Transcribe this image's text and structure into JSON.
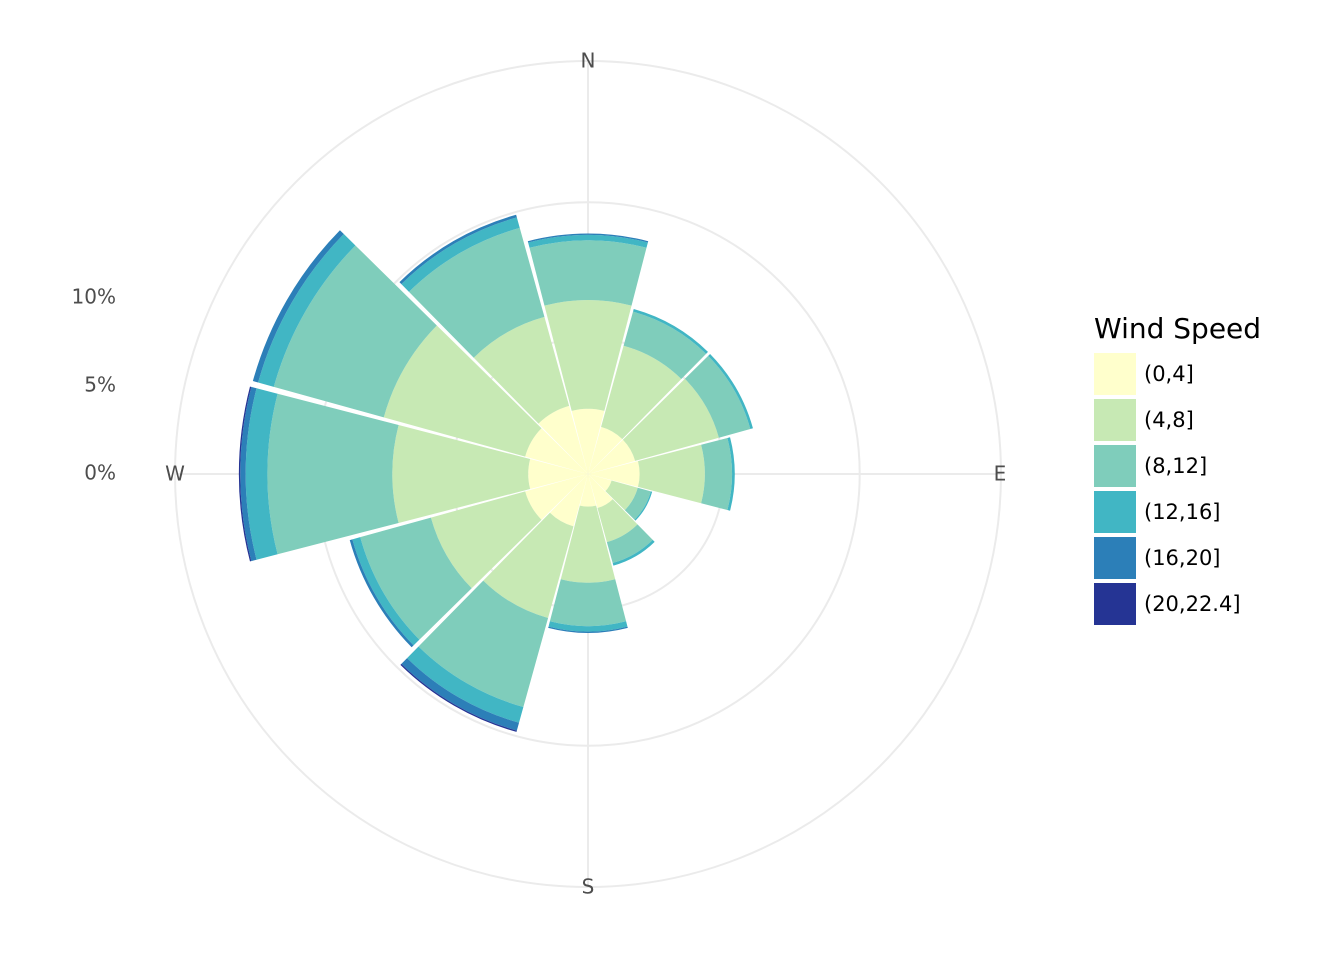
{
  "chart_data": {
    "type": "bar",
    "coordinate_system": "polar",
    "title": "",
    "xlabel": "",
    "ylabel": "",
    "radial_ticks": [
      "0%",
      "5%",
      "10%"
    ],
    "radial_tick_values": [
      0,
      5,
      10
    ],
    "radial_range": [
      0,
      15.2
    ],
    "direction_labels": [
      "N",
      "E",
      "S",
      "W"
    ],
    "directions_deg": [
      0,
      30,
      60,
      90,
      120,
      150,
      180,
      210,
      240,
      270,
      300,
      330
    ],
    "stacked": true,
    "grid": true,
    "legend": {
      "title": "Wind Speed",
      "position": "right",
      "colors": [
        "#ffffcc",
        "#c7e9b4",
        "#7fcdbb",
        "#41b6c4",
        "#2c7fb8",
        "#253494"
      ]
    },
    "series": [
      {
        "name": "(0,4]",
        "values": [
          2.4,
          1.8,
          1.8,
          1.9,
          0.9,
          1.3,
          1.2,
          2.0,
          2.4,
          2.2,
          2.4,
          2.6
        ]
      },
      {
        "name": "(4,8]",
        "values": [
          4.0,
          3.1,
          3.2,
          2.4,
          1.0,
          1.3,
          2.8,
          3.5,
          3.6,
          5.0,
          5.4,
          3.4
        ]
      },
      {
        "name": "(8,12]",
        "values": [
          2.2,
          1.3,
          1.2,
          1.0,
          0.5,
          0.8,
          1.6,
          3.4,
          2.7,
          4.6,
          4.2,
          3.4
        ]
      },
      {
        "name": "(12,16]",
        "values": [
          0.2,
          0.1,
          0.1,
          0.1,
          0.05,
          0.1,
          0.2,
          0.6,
          0.3,
          0.8,
          0.6,
          0.4
        ]
      },
      {
        "name": "(16,20]",
        "values": [
          0.05,
          0.0,
          0.0,
          0.0,
          0.0,
          0.0,
          0.05,
          0.3,
          0.1,
          0.2,
          0.2,
          0.1
        ]
      },
      {
        "name": "(20,22.4]",
        "values": [
          0.0,
          0.0,
          0.0,
          0.0,
          0.0,
          0.0,
          0.0,
          0.05,
          0.0,
          0.05,
          0.0,
          0.0
        ]
      }
    ]
  }
}
